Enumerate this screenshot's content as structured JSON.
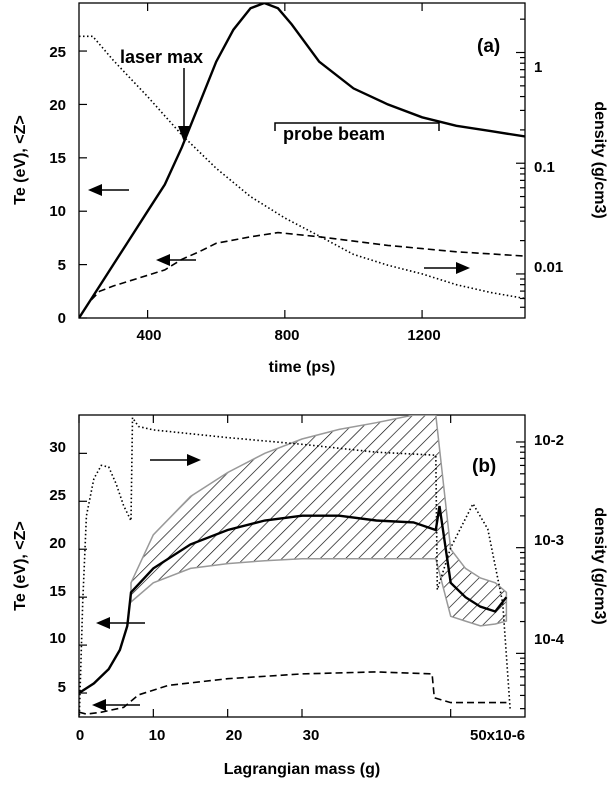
{
  "chart_data": [
    {
      "panel": "(a)",
      "type": "line",
      "xlabel": "time (ps)",
      "ylabel": "Te (eV), <Z>",
      "ylabel_right": "density (g/cm3)",
      "x_ticks": [
        "400",
        "800",
        "1200"
      ],
      "y_ticks": [
        "0",
        "5",
        "10",
        "15",
        "20",
        "25"
      ],
      "yr_ticks": [
        "1",
        "0.1",
        "0.01"
      ],
      "xlim": [
        200,
        1500
      ],
      "ylim": [
        0,
        29.5
      ],
      "yr_scale": "log",
      "yr_lim": [
        0.004,
        2.8
      ],
      "series": [
        {
          "style": "solid",
          "axis": "left",
          "x": [
            200,
            230,
            260,
            300,
            350,
            400,
            450,
            500,
            550,
            600,
            650,
            700,
            740,
            780,
            820,
            900,
            1000,
            1100,
            1200,
            1300,
            1400,
            1500
          ],
          "y": [
            0,
            1.5,
            3,
            5,
            7.5,
            10,
            12.5,
            16,
            20,
            24,
            27,
            29,
            29.5,
            29,
            27.5,
            24,
            21.5,
            20,
            18.8,
            18,
            17.5,
            17
          ]
        },
        {
          "style": "dashed",
          "axis": "left",
          "x": [
            200,
            230,
            260,
            300,
            400,
            450,
            500,
            550,
            600,
            700,
            780,
            900,
            1000,
            1100,
            1200,
            1300,
            1400,
            1500
          ],
          "y": [
            0,
            1.5,
            2.5,
            3,
            4,
            4.5,
            5.5,
            6.2,
            7,
            7.6,
            8,
            7.6,
            7.2,
            6.8,
            6.5,
            6.2,
            6,
            5.8
          ]
        },
        {
          "style": "dotted",
          "axis": "right",
          "x": [
            200,
            240,
            300,
            400,
            500,
            600,
            700,
            800,
            900,
            1000,
            1100,
            1200,
            1300,
            1400,
            1500
          ],
          "y": [
            1.4,
            1.4,
            0.85,
            0.4,
            0.18,
            0.09,
            0.05,
            0.032,
            0.022,
            0.015,
            0.012,
            0.01,
            0.008,
            0.0068,
            0.006
          ]
        }
      ],
      "annotations": [
        "laser max",
        "probe beam"
      ]
    },
    {
      "panel": "(b)",
      "type": "line",
      "xlabel": "Lagrangian mass (g)",
      "ylabel": "Te (eV), <Z>",
      "ylabel_right": "density (g/cm3)",
      "x_ticks": [
        "0",
        "10",
        "20",
        "30",
        "50x10-6"
      ],
      "y_ticks": [
        "5",
        "10",
        "15",
        "20",
        "25",
        "30"
      ],
      "yr_ticks": [
        "10-2",
        "10-3",
        "10-4"
      ],
      "xlim": [
        0,
        60
      ],
      "ylim": [
        2.5,
        34
      ],
      "yr_scale": "log",
      "yr_lim": [
        2.5e-05,
        0.018
      ],
      "series": [
        {
          "style": "solid",
          "axis": "left",
          "x": [
            0,
            2,
            4,
            5.5,
            6.5,
            7,
            10,
            15,
            20,
            25,
            30,
            35,
            40,
            45,
            48,
            48.5,
            50,
            52,
            54,
            56,
            57.5
          ],
          "y": [
            5,
            6,
            7.5,
            9.5,
            12,
            15.5,
            18,
            20.5,
            22,
            23,
            23.5,
            23.5,
            23,
            22.8,
            22,
            24.5,
            16.5,
            15,
            14,
            13.5,
            15
          ]
        },
        {
          "style": "dashed",
          "axis": "left",
          "x": [
            0,
            1,
            3,
            6,
            8,
            12,
            20,
            30,
            40,
            47.5,
            47.8,
            50,
            55,
            57.5
          ],
          "y": [
            3,
            2.8,
            3,
            3.5,
            4.8,
            5.8,
            6.5,
            7,
            7.2,
            7,
            4.5,
            4,
            4,
            4
          ]
        },
        {
          "style": "dotted",
          "axis": "right",
          "x": [
            0,
            0.5,
            1,
            2,
            3,
            4,
            5,
            6,
            7,
            7.2,
            8,
            10,
            20,
            30,
            40,
            48,
            48.2,
            50,
            53,
            55,
            57,
            58
          ],
          "y": [
            2e-05,
            0.0003,
            0.002,
            0.0045,
            0.006,
            0.0058,
            0.004,
            0.0025,
            0.0018,
            0.017,
            0.014,
            0.013,
            0.011,
            0.0095,
            0.008,
            0.0075,
            0.0004,
            0.001,
            0.0026,
            0.0015,
            0.0003,
            3e-05
          ]
        }
      ],
      "band": {
        "x": [
          7,
          10,
          15,
          20,
          25,
          30,
          35,
          40,
          45,
          48,
          50,
          52,
          54,
          56,
          57.5
        ],
        "upper": [
          16.5,
          21.5,
          25.5,
          28,
          30,
          31.5,
          32.5,
          33.2,
          34,
          34,
          20,
          18,
          17,
          16.5,
          15.5
        ],
        "lower": [
          14.5,
          16.5,
          18,
          18.5,
          18.8,
          19,
          19,
          19,
          19,
          19,
          13,
          12.5,
          12,
          12.2,
          12.5
        ]
      }
    }
  ]
}
